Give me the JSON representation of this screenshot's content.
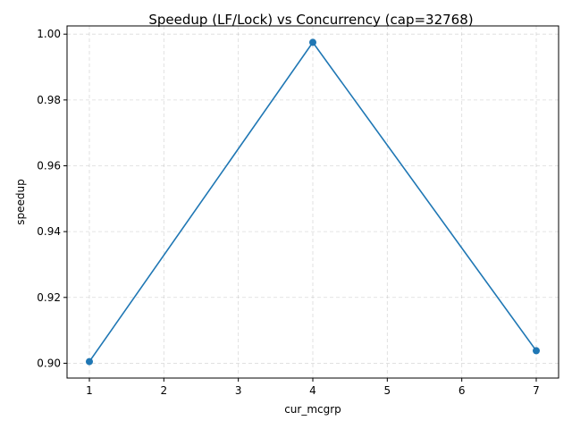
{
  "chart_data": {
    "type": "line",
    "title": "Speedup (LF/Lock) vs Concurrency (cap=32768)",
    "xlabel": "cur_mcgrp",
    "ylabel": "speedup",
    "x": [
      1,
      4,
      7
    ],
    "series": [
      {
        "values": [
          0.9005,
          0.9975,
          0.9038
        ]
      }
    ],
    "xlim": [
      0.7,
      7.3
    ],
    "ylim": [
      0.8955,
      1.0025
    ],
    "xticks": [
      1,
      2,
      3,
      4,
      5,
      6,
      7
    ],
    "xtick_labels": [
      "1",
      "2",
      "3",
      "4",
      "5",
      "6",
      "7"
    ],
    "yticks": [
      0.9,
      0.92,
      0.94,
      0.96,
      0.98,
      1.0
    ],
    "ytick_labels": [
      "0.90",
      "0.92",
      "0.94",
      "0.96",
      "0.98",
      "1.00"
    ],
    "grid": true,
    "line_color": "#1f77b4",
    "marker": "circle"
  }
}
